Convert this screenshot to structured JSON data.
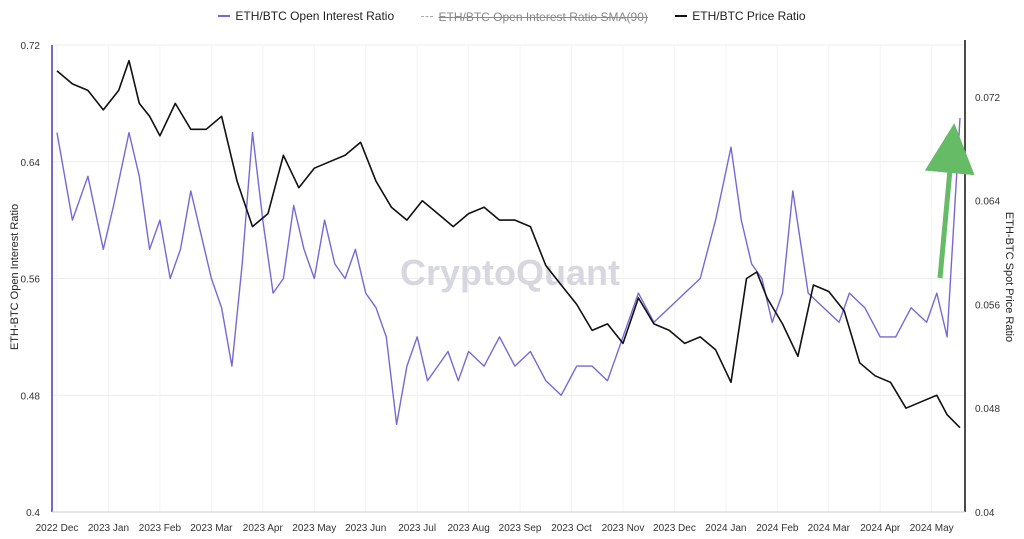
{
  "chart_data": {
    "type": "line",
    "title": "",
    "watermark": "CryptoQuant",
    "legend": [
      {
        "name": "ETH/BTC Open Interest Ratio",
        "color": "#7a66d6",
        "enabled": true
      },
      {
        "name": "ETH/BTC Open Interest Ratio SMA(90)",
        "color": "#aaaaaa",
        "enabled": false
      },
      {
        "name": "ETH/BTC Price Ratio",
        "color": "#111111",
        "enabled": true
      }
    ],
    "ylabel_left": "ETH-BTC Open Interest Ratio",
    "ylabel_right": "ETH-BTC Spot Price Ratio",
    "ylim_left": [
      0.4,
      0.72
    ],
    "ylim_right": [
      0.04,
      0.076
    ],
    "yticks_left": [
      "0.72",
      "0.64",
      "0.56",
      "0.48",
      "0.4"
    ],
    "yticks_left_values": [
      0.72,
      0.64,
      0.56,
      0.48,
      0.4
    ],
    "yticks_right": [
      "0.072",
      "0.064",
      "0.056",
      "0.048",
      "0.04"
    ],
    "yticks_right_values": [
      0.072,
      0.064,
      0.056,
      0.048,
      0.04
    ],
    "xlabels": [
      "2022 Dec",
      "2023 Jan",
      "2023 Feb",
      "2023 Mar",
      "2023 Apr",
      "2023 May",
      "2023 Jun",
      "2023 Jul",
      "2023 Aug",
      "2023 Sep",
      "2023 Oct",
      "2023 Nov",
      "2023 Dec",
      "2024 Jan",
      "2024 Feb",
      "2024 Mar",
      "2024 Apr",
      "2024 May"
    ],
    "annotation": "green up arrow at right indicating rising open interest ratio",
    "series": [
      {
        "name": "ETH/BTC Open Interest Ratio",
        "axis": "left",
        "x": [
          0,
          0.3,
          0.6,
          0.9,
          1.1,
          1.4,
          1.6,
          1.8,
          2.0,
          2.2,
          2.4,
          2.6,
          2.8,
          3.0,
          3.2,
          3.4,
          3.6,
          3.8,
          4.0,
          4.2,
          4.4,
          4.6,
          4.8,
          5.0,
          5.2,
          5.4,
          5.6,
          5.8,
          6.0,
          6.2,
          6.4,
          6.6,
          6.8,
          7.0,
          7.2,
          7.4,
          7.6,
          7.8,
          8.0,
          8.3,
          8.6,
          8.9,
          9.2,
          9.5,
          9.8,
          10.1,
          10.4,
          10.7,
          11.0,
          11.3,
          11.6,
          11.9,
          12.2,
          12.5,
          12.8,
          13.1,
          13.3,
          13.5,
          13.7,
          13.9,
          14.1,
          14.3,
          14.6,
          14.9,
          15.2,
          15.4,
          15.7,
          16.0,
          16.3,
          16.6,
          16.9,
          17.1,
          17.3,
          17.55
        ],
        "values": [
          0.66,
          0.6,
          0.63,
          0.58,
          0.61,
          0.66,
          0.63,
          0.58,
          0.6,
          0.56,
          0.58,
          0.62,
          0.59,
          0.56,
          0.54,
          0.5,
          0.57,
          0.66,
          0.6,
          0.55,
          0.56,
          0.61,
          0.58,
          0.56,
          0.6,
          0.57,
          0.56,
          0.58,
          0.55,
          0.54,
          0.52,
          0.46,
          0.5,
          0.52,
          0.49,
          0.5,
          0.51,
          0.49,
          0.51,
          0.5,
          0.52,
          0.5,
          0.51,
          0.49,
          0.48,
          0.5,
          0.5,
          0.49,
          0.52,
          0.55,
          0.53,
          0.54,
          0.55,
          0.56,
          0.6,
          0.65,
          0.6,
          0.57,
          0.56,
          0.53,
          0.55,
          0.62,
          0.55,
          0.54,
          0.53,
          0.55,
          0.54,
          0.52,
          0.52,
          0.54,
          0.53,
          0.55,
          0.52,
          0.67
        ]
      },
      {
        "name": "ETH/BTC Price Ratio",
        "axis": "right",
        "x": [
          0,
          0.3,
          0.6,
          0.9,
          1.2,
          1.4,
          1.6,
          1.8,
          2.0,
          2.3,
          2.6,
          2.9,
          3.2,
          3.5,
          3.8,
          4.1,
          4.4,
          4.7,
          5.0,
          5.3,
          5.6,
          5.9,
          6.2,
          6.5,
          6.8,
          7.1,
          7.4,
          7.7,
          8.0,
          8.3,
          8.6,
          8.9,
          9.2,
          9.5,
          9.8,
          10.1,
          10.4,
          10.7,
          11.0,
          11.3,
          11.6,
          11.9,
          12.2,
          12.5,
          12.8,
          13.1,
          13.4,
          13.6,
          13.8,
          14.1,
          14.4,
          14.7,
          15.0,
          15.3,
          15.6,
          15.9,
          16.2,
          16.5,
          16.8,
          17.1,
          17.3,
          17.55
        ],
        "values": [
          0.074,
          0.073,
          0.0725,
          0.071,
          0.0725,
          0.0748,
          0.0715,
          0.0705,
          0.069,
          0.0715,
          0.0695,
          0.0695,
          0.0705,
          0.0655,
          0.062,
          0.063,
          0.0675,
          0.065,
          0.0665,
          0.067,
          0.0675,
          0.0685,
          0.0655,
          0.0635,
          0.0625,
          0.064,
          0.063,
          0.062,
          0.063,
          0.0635,
          0.0625,
          0.0625,
          0.062,
          0.059,
          0.0575,
          0.056,
          0.054,
          0.0545,
          0.053,
          0.0565,
          0.0545,
          0.054,
          0.053,
          0.0535,
          0.0525,
          0.05,
          0.058,
          0.0585,
          0.0565,
          0.0545,
          0.052,
          0.0575,
          0.057,
          0.0555,
          0.0515,
          0.0505,
          0.05,
          0.048,
          0.0485,
          0.049,
          0.0475,
          0.0465
        ]
      }
    ]
  }
}
